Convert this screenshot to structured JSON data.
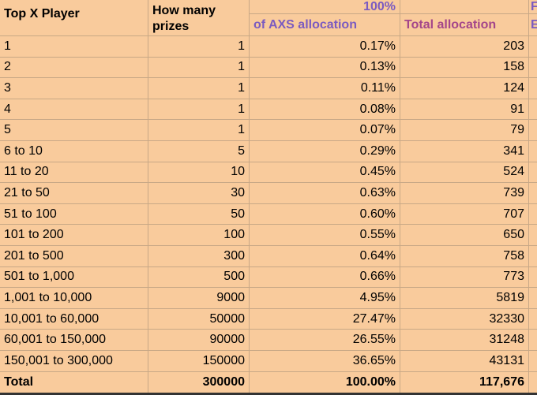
{
  "headers": {
    "col1": "Top X Player",
    "col2": "How many prizes",
    "col3_top": "100%",
    "col3": "of AXS allocation",
    "col4": "Total allocation",
    "col5_top": "F",
    "col5": "E"
  },
  "colors": {
    "background": "#f9cb9c",
    "purple": "#7b5bc0",
    "magenta": "#a4468a"
  },
  "rows": [
    {
      "tier": "1",
      "prizes": "1",
      "percent": "0.17%",
      "total": "203"
    },
    {
      "tier": "2",
      "prizes": "1",
      "percent": "0.13%",
      "total": "158"
    },
    {
      "tier": "3",
      "prizes": "1",
      "percent": "0.11%",
      "total": "124"
    },
    {
      "tier": "4",
      "prizes": "1",
      "percent": "0.08%",
      "total": "91"
    },
    {
      "tier": "5",
      "prizes": "1",
      "percent": "0.07%",
      "total": "79"
    },
    {
      "tier": "6 to 10",
      "prizes": "5",
      "percent": "0.29%",
      "total": "341"
    },
    {
      "tier": "11 to 20",
      "prizes": "10",
      "percent": "0.45%",
      "total": "524"
    },
    {
      "tier": "21 to 50",
      "prizes": "30",
      "percent": "0.63%",
      "total": "739"
    },
    {
      "tier": "51 to 100",
      "prizes": "50",
      "percent": "0.60%",
      "total": "707"
    },
    {
      "tier": "101 to 200",
      "prizes": "100",
      "percent": "0.55%",
      "total": "650"
    },
    {
      "tier": "201 to 500",
      "prizes": "300",
      "percent": "0.64%",
      "total": "758"
    },
    {
      "tier": "501 to 1,000",
      "prizes": "500",
      "percent": "0.66%",
      "total": "773"
    },
    {
      "tier": "1,001 to 10,000",
      "prizes": "9000",
      "percent": "4.95%",
      "total": "5819"
    },
    {
      "tier": "10,001 to 60,000",
      "prizes": "50000",
      "percent": "27.47%",
      "total": "32330"
    },
    {
      "tier": "60,001 to 150,000",
      "prizes": "90000",
      "percent": "26.55%",
      "total": "31248"
    },
    {
      "tier": "150,001 to 300,000",
      "prizes": "150000",
      "percent": "36.65%",
      "total": "43131"
    }
  ],
  "totals": {
    "label": "Total",
    "prizes": "300000",
    "percent": "100.00%",
    "total": "117,676"
  }
}
